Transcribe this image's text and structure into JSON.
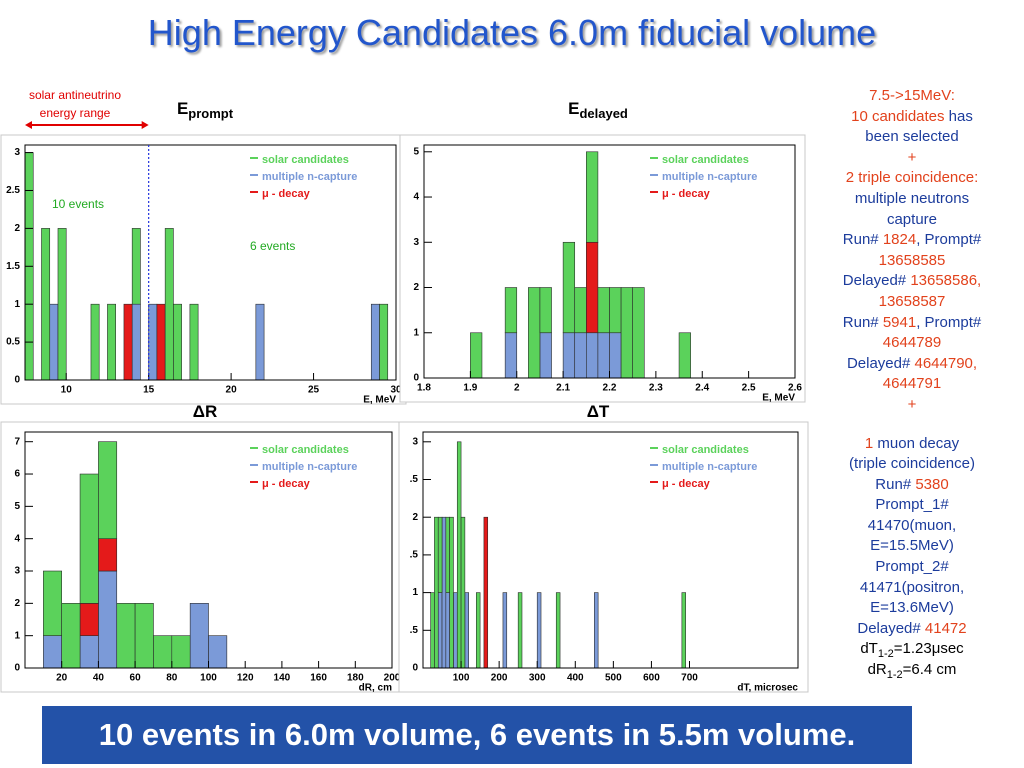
{
  "title": "High Energy Candidates 6.0m fiducial volume",
  "chart_data": [
    {
      "type": "histogram",
      "title": "E",
      "title_sub": "prompt",
      "xlabel": "E, MeV",
      "bins": [
        7.5,
        8,
        8.5,
        9,
        9.5,
        10,
        10.5,
        11,
        11.5,
        12,
        12.5,
        13,
        13.5,
        14,
        14.5,
        15,
        15.5,
        16,
        16.5,
        17,
        17.5,
        18,
        18.5,
        19,
        19.5,
        20,
        20.5,
        21,
        21.5,
        22,
        22.5,
        23,
        23.5,
        24,
        24.5,
        25,
        25.5,
        26,
        26.5,
        27,
        27.5,
        28,
        28.5,
        29,
        29.5,
        30
      ],
      "series": [
        {
          "name": "solar candidates",
          "color": "#5bd25b",
          "values": [
            3,
            0,
            2,
            0,
            2,
            0,
            0,
            0,
            1,
            0,
            1,
            0,
            0,
            1,
            0,
            0,
            0,
            2,
            1,
            0,
            1,
            0,
            0,
            0,
            0,
            0,
            0,
            0,
            0,
            0,
            0,
            0,
            0,
            0,
            0,
            0,
            0,
            0,
            0,
            0,
            0,
            0,
            0,
            1,
            0
          ]
        },
        {
          "name": "multiple n-capture",
          "color": "#7b9ad8",
          "values": [
            0,
            0,
            0,
            1,
            0,
            0,
            0,
            0,
            0,
            0,
            0,
            0,
            0,
            1,
            0,
            1,
            0,
            0,
            0,
            0,
            0,
            0,
            0,
            0,
            0,
            0,
            0,
            0,
            1,
            0,
            0,
            0,
            0,
            0,
            0,
            0,
            0,
            0,
            0,
            0,
            0,
            0,
            1,
            0,
            0
          ]
        },
        {
          "name": "μ - decay",
          "color": "#e41a1a",
          "values": [
            0,
            0,
            0,
            0,
            0,
            0,
            0,
            0,
            0,
            0,
            0,
            0,
            1,
            0,
            0,
            0,
            1,
            0,
            0,
            0,
            0,
            0,
            0,
            0,
            0,
            0,
            0,
            0,
            0,
            0,
            0,
            0,
            0,
            0,
            0,
            0,
            0,
            0,
            0,
            0,
            0,
            0,
            0,
            0,
            0
          ]
        }
      ],
      "xlim": [
        7.5,
        30
      ],
      "xticks": [
        10,
        15,
        20,
        25,
        30
      ],
      "ylim": [
        0,
        3.1
      ],
      "yticks": [
        0,
        0.5,
        1,
        1.5,
        2,
        2.5,
        3
      ],
      "marker_line": 15,
      "annotations": [
        "solar antineutrino",
        "energy range",
        "10 events",
        "6 events"
      ]
    },
    {
      "type": "histogram",
      "title": "E",
      "title_sub": "delayed",
      "xlabel": "E, MeV",
      "bins": [
        1.8,
        1.825,
        1.85,
        1.875,
        1.9,
        1.925,
        1.95,
        1.975,
        2,
        2.025,
        2.05,
        2.075,
        2.1,
        2.125,
        2.15,
        2.175,
        2.2,
        2.225,
        2.25,
        2.275,
        2.3,
        2.325,
        2.35,
        2.375,
        2.4,
        2.425,
        2.45,
        2.475,
        2.5,
        2.525,
        2.55,
        2.575,
        2.6
      ],
      "series": [
        {
          "name": "solar candidates",
          "color": "#5bd25b",
          "values": [
            0,
            0,
            0,
            0,
            1,
            0,
            0,
            1,
            0,
            2,
            1,
            0,
            2,
            1,
            2,
            1,
            1,
            2,
            2,
            0,
            0,
            0,
            1,
            0,
            0,
            0,
            0,
            0,
            0,
            0,
            0,
            0
          ]
        },
        {
          "name": "multiple n-capture",
          "color": "#7b9ad8",
          "values": [
            0,
            0,
            0,
            0,
            0,
            0,
            0,
            1,
            0,
            0,
            1,
            0,
            1,
            1,
            1,
            1,
            1,
            0,
            0,
            0,
            0,
            0,
            0,
            0,
            0,
            0,
            0,
            0,
            0,
            0,
            0,
            0
          ]
        },
        {
          "name": "μ - decay",
          "color": "#e41a1a",
          "values": [
            0,
            0,
            0,
            0,
            0,
            0,
            0,
            0,
            0,
            0,
            0,
            0,
            0,
            0,
            2,
            0,
            0,
            0,
            0,
            0,
            0,
            0,
            0,
            0,
            0,
            0,
            0,
            0,
            0,
            0,
            0,
            0
          ]
        }
      ],
      "xlim": [
        1.8,
        2.6
      ],
      "xticks": [
        1.8,
        1.9,
        2,
        2.1,
        2.2,
        2.3,
        2.4,
        2.5,
        2.6
      ],
      "ylim": [
        0,
        5.15
      ],
      "yticks": [
        0,
        1,
        2,
        3,
        4,
        5
      ]
    },
    {
      "type": "histogram",
      "title": "ΔR",
      "xlabel": "dR, cm",
      "bins": [
        0,
        10,
        20,
        30,
        40,
        50,
        60,
        70,
        80,
        90,
        100,
        110,
        120,
        130,
        140,
        150,
        160,
        170,
        180,
        190,
        200
      ],
      "series": [
        {
          "name": "solar candidates",
          "color": "#5bd25b",
          "values": [
            0,
            2,
            2,
            4,
            3,
            2,
            2,
            1,
            1,
            0,
            0,
            0,
            0,
            0,
            0,
            0,
            0,
            0,
            0,
            0
          ]
        },
        {
          "name": "multiple n-capture",
          "color": "#7b9ad8",
          "values": [
            0,
            1,
            0,
            1,
            3,
            0,
            0,
            0,
            0,
            2,
            1,
            0,
            0,
            0,
            0,
            0,
            0,
            0,
            0,
            0
          ]
        },
        {
          "name": "μ - decay",
          "color": "#e41a1a",
          "values": [
            0,
            0,
            0,
            1,
            1,
            0,
            0,
            0,
            0,
            0,
            0,
            0,
            0,
            0,
            0,
            0,
            0,
            0,
            0,
            0
          ]
        }
      ],
      "xlim": [
        0,
        200
      ],
      "xticks": [
        20,
        40,
        60,
        80,
        100,
        120,
        140,
        160,
        180,
        200
      ],
      "ylim": [
        0,
        7.3
      ],
      "yticks": [
        0,
        1,
        2,
        3,
        4,
        5,
        6,
        7
      ]
    },
    {
      "type": "histogram",
      "title": "ΔT",
      "xlabel": "dT, microsec",
      "bins": [
        0,
        10,
        20,
        30,
        40,
        50,
        60,
        70,
        80,
        90,
        100,
        110,
        120,
        130,
        140,
        150,
        160,
        170,
        180,
        190,
        200,
        210,
        220,
        230,
        240,
        250,
        260,
        270,
        280,
        290,
        300,
        310,
        320,
        330,
        340,
        350,
        360,
        370,
        380,
        390,
        400,
        410,
        420,
        430,
        440,
        450,
        460,
        470,
        480,
        490,
        500,
        510,
        520,
        530,
        540,
        550,
        560,
        570,
        580,
        590,
        600,
        610,
        620,
        630,
        640,
        650,
        660,
        670,
        680,
        690,
        700
      ],
      "series": [
        {
          "name": "solar candidates",
          "color": "#5bd25b",
          "values": [
            0,
            0,
            1,
            2,
            1,
            0,
            1,
            2,
            0,
            3,
            2,
            0,
            0,
            0,
            1,
            0,
            0,
            0,
            0,
            0,
            0,
            0,
            0,
            0,
            0,
            1,
            0,
            0,
            0,
            0,
            0,
            0,
            0,
            0,
            0,
            1,
            0,
            0,
            0,
            0,
            0,
            0,
            0,
            0,
            0,
            0,
            0,
            0,
            0,
            0,
            0,
            0,
            0,
            0,
            0,
            0,
            0,
            0,
            0,
            0,
            0,
            0,
            0,
            0,
            0,
            0,
            0,
            0,
            1,
            0
          ]
        },
        {
          "name": "multiple n-capture",
          "color": "#7b9ad8",
          "values": [
            0,
            0,
            0,
            0,
            1,
            2,
            1,
            0,
            1,
            0,
            0,
            1,
            0,
            0,
            0,
            0,
            0,
            0,
            0,
            0,
            0,
            1,
            0,
            0,
            0,
            0,
            0,
            0,
            0,
            0,
            1,
            0,
            0,
            0,
            0,
            0,
            0,
            0,
            0,
            0,
            0,
            0,
            0,
            0,
            0,
            1,
            0,
            0,
            0,
            0,
            0,
            0,
            0,
            0,
            0,
            0,
            0,
            0,
            0,
            0,
            0,
            0,
            0,
            0,
            0,
            0,
            0,
            0,
            0,
            0
          ]
        },
        {
          "name": "μ - decay",
          "color": "#e41a1a",
          "values": [
            0,
            0,
            0,
            0,
            0,
            0,
            0,
            0,
            0,
            0,
            0,
            0,
            0,
            0,
            0,
            0,
            2,
            0,
            0,
            0,
            0,
            0,
            0,
            0,
            0,
            0,
            0,
            0,
            0,
            0,
            0,
            0,
            0,
            0,
            0,
            0,
            0,
            0,
            0,
            0,
            0,
            0,
            0,
            0,
            0,
            0,
            0,
            0,
            0,
            0,
            0,
            0,
            0,
            0,
            0,
            0,
            0,
            0,
            0,
            0,
            0,
            0,
            0,
            0,
            0,
            0,
            0,
            0,
            0,
            0
          ]
        }
      ],
      "xlim": [
        0,
        985
      ],
      "xticks": [
        100,
        200,
        300,
        400,
        500,
        600,
        700
      ],
      "ylim": [
        0,
        3.13
      ],
      "yticks": [
        0,
        {
          "value": 0.5,
          "label": ".5"
        },
        1,
        {
          "value": 1.5,
          "label": ".5"
        },
        2,
        {
          "value": 2.5,
          "label": ".5"
        },
        3
      ]
    }
  ],
  "side_panel": {
    "blocks": [
      [
        [
          {
            "text": "7.5->15MeV:",
            "color": "#e2421c"
          }
        ],
        [
          {
            "text": "10 candidates",
            "color": "#e2421c"
          },
          {
            "text": " has",
            "color": "#1c3c9c"
          }
        ],
        [
          {
            "text": "been selected",
            "color": "#1c3c9c"
          }
        ],
        [
          {
            "text": "+",
            "color": "#e2421c"
          }
        ],
        [
          {
            "text": "2 triple coincidence:",
            "color": "#e2421c"
          }
        ],
        [
          {
            "text": "multiple neutrons",
            "color": "#1c3c9c"
          }
        ],
        [
          {
            "text": "capture",
            "color": "#1c3c9c"
          }
        ],
        [
          {
            "text": "Run# ",
            "color": "#1c3c9c"
          },
          {
            "text": "1824",
            "color": "#e2421c"
          },
          {
            "text": ", Prompt#",
            "color": "#1c3c9c"
          }
        ],
        [
          {
            "text": "13658585",
            "color": "#e2421c"
          }
        ],
        [
          {
            "text": "Delayed# ",
            "color": "#1c3c9c"
          },
          {
            "text": "13658586,",
            "color": "#e2421c"
          }
        ],
        [
          {
            "text": "13658587",
            "color": "#e2421c"
          }
        ],
        [
          {
            "text": "Run# ",
            "color": "#1c3c9c"
          },
          {
            "text": "5941",
            "color": "#e2421c"
          },
          {
            "text": ", Prompt#",
            "color": "#1c3c9c"
          }
        ],
        [
          {
            "text": "4644789",
            "color": "#e2421c"
          }
        ],
        [
          {
            "text": "Delayed# ",
            "color": "#1c3c9c"
          },
          {
            "text": "4644790,",
            "color": "#e2421c"
          }
        ],
        [
          {
            "text": "4644791",
            "color": "#e2421c"
          }
        ],
        [
          {
            "text": "+",
            "color": "#e2421c"
          }
        ]
      ],
      [
        [
          {
            "text": "1",
            "color": "#e2421c"
          },
          {
            "text": " muon decay",
            "color": "#1c3c9c"
          }
        ],
        [
          {
            "text": "(triple coincidence)",
            "color": "#1c3c9c"
          }
        ],
        [
          {
            "text": "Run# ",
            "color": "#1c3c9c"
          },
          {
            "text": "5380",
            "color": "#e2421c"
          }
        ],
        [
          {
            "text": "Prompt_1#",
            "color": "#1c3c9c"
          }
        ],
        [
          {
            "text": "41470(muon,",
            "color": "#1c3c9c"
          }
        ],
        [
          {
            "text": "E=15.5MeV)",
            "color": "#1c3c9c"
          }
        ],
        [
          {
            "text": "Prompt_2#",
            "color": "#1c3c9c"
          }
        ],
        [
          {
            "text": "41471(positron,",
            "color": "#1c3c9c"
          }
        ],
        [
          {
            "text": "E=13.6MeV)",
            "color": "#1c3c9c"
          }
        ],
        [
          {
            "text": "Delayed# ",
            "color": "#1c3c9c"
          },
          {
            "text": "41472",
            "color": "#e2421c"
          }
        ],
        [
          {
            "text": "dT",
            "color": "#000000"
          },
          {
            "text": "1-2",
            "color": "#000000",
            "sub": true
          },
          {
            "text": "=1.23μsec",
            "color": "#000000"
          }
        ],
        [
          {
            "text": "dR",
            "color": "#000000"
          },
          {
            "text": "1-2",
            "color": "#000000",
            "sub": true
          },
          {
            "text": "=6.4 cm",
            "color": "#000000"
          }
        ]
      ]
    ]
  },
  "banner": "10 events in 6.0m volume, 6 events in 5.5m volume."
}
